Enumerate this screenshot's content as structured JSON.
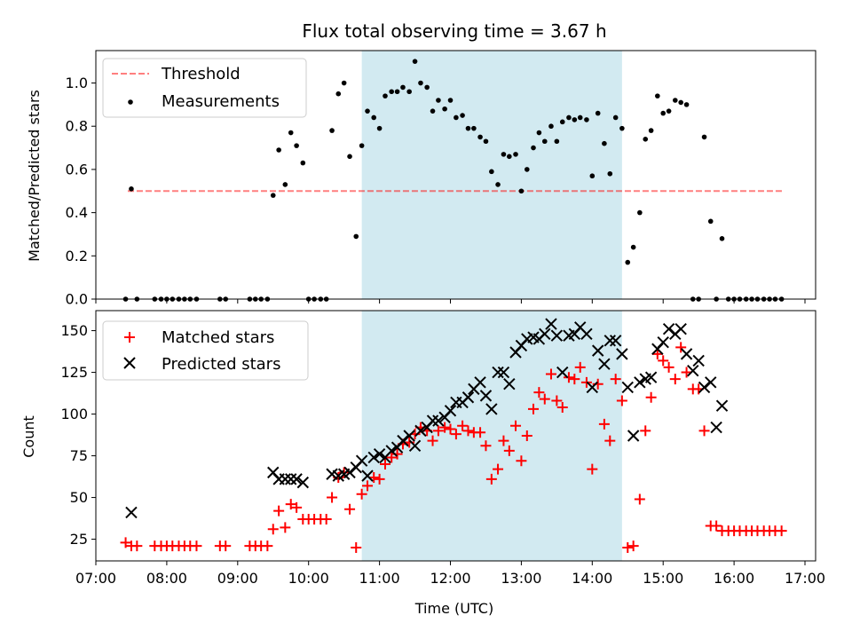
{
  "title": "Flux total observing time = 3.67 h",
  "colors": {
    "observing_span": "#add8e6",
    "threshold": "#ff0000",
    "measurements": "#000000",
    "matched": "#ff0000",
    "predicted": "#000000"
  },
  "chart_data": [
    {
      "type": "scatter",
      "panel": "top",
      "xlabel": "",
      "ylabel": "Matched/Predicted stars",
      "xlim": [
        7.0,
        17.15
      ],
      "ylim": [
        0.0,
        1.15
      ],
      "yticks": [
        0.0,
        0.2,
        0.4,
        0.6,
        0.8,
        1.0
      ],
      "ytick_labels": [
        "0.0",
        "0.2",
        "0.4",
        "0.6",
        "0.8",
        "1.0"
      ],
      "shaded_span": {
        "start": 10.75,
        "end": 14.42
      },
      "legend": {
        "position": "top-left",
        "entries": [
          {
            "label": "Threshold",
            "style": "dashed-line"
          },
          {
            "label": "Measurements",
            "style": "dot"
          }
        ]
      },
      "threshold": {
        "name": "Threshold",
        "value": 0.5,
        "x_range": [
          7.45,
          16.7
        ]
      },
      "series": [
        {
          "name": "Measurements",
          "x": [
            7.42,
            7.5,
            7.58,
            7.83,
            7.92,
            8.0,
            8.08,
            8.17,
            8.25,
            8.33,
            8.42,
            8.75,
            8.83,
            9.17,
            9.25,
            9.33,
            9.42,
            9.5,
            9.58,
            9.67,
            9.75,
            9.83,
            9.92,
            10.0,
            10.08,
            10.17,
            10.25,
            10.33,
            10.42,
            10.5,
            10.58,
            10.67,
            10.75,
            10.83,
            10.92,
            11.0,
            11.08,
            11.17,
            11.25,
            11.33,
            11.42,
            11.5,
            11.58,
            11.67,
            11.75,
            11.83,
            11.92,
            12.0,
            12.08,
            12.17,
            12.25,
            12.33,
            12.42,
            12.5,
            12.58,
            12.67,
            12.75,
            12.83,
            12.92,
            13.0,
            13.08,
            13.17,
            13.25,
            13.33,
            13.42,
            13.5,
            13.58,
            13.67,
            13.75,
            13.83,
            13.92,
            14.0,
            14.08,
            14.17,
            14.25,
            14.33,
            14.42,
            14.5,
            14.58,
            14.67,
            14.75,
            14.83,
            14.92,
            15.0,
            15.08,
            15.17,
            15.25,
            15.33,
            15.42,
            15.5,
            15.58,
            15.67,
            15.75,
            15.83,
            15.92,
            16.0,
            16.08,
            16.17,
            16.25,
            16.33,
            16.42,
            16.5,
            16.58,
            16.67
          ],
          "y": [
            0,
            0.51,
            0,
            0,
            0,
            0,
            0,
            0,
            0,
            0,
            0,
            0,
            0,
            0,
            0,
            0,
            0,
            0.48,
            0.69,
            0.53,
            0.77,
            0.71,
            0.63,
            0,
            0,
            0,
            0,
            0.78,
            0.95,
            1.0,
            0.66,
            0.29,
            0.71,
            0.87,
            0.84,
            0.79,
            0.94,
            0.96,
            0.96,
            0.98,
            0.96,
            1.1,
            1.0,
            0.98,
            0.87,
            0.92,
            0.88,
            0.92,
            0.84,
            0.85,
            0.79,
            0.79,
            0.75,
            0.73,
            0.59,
            0.53,
            0.67,
            0.66,
            0.67,
            0.5,
            0.6,
            0.7,
            0.77,
            0.73,
            0.8,
            0.73,
            0.82,
            0.84,
            0.83,
            0.84,
            0.83,
            0.57,
            0.86,
            0.72,
            0.58,
            0.84,
            0.79,
            0.17,
            0.24,
            0.4,
            0.74,
            0.78,
            0.94,
            0.86,
            0.87,
            0.92,
            0.91,
            0.9,
            0,
            0,
            0.75,
            0.36,
            0,
            0.28,
            0,
            0,
            0,
            0,
            0,
            0,
            0,
            0,
            0,
            0
          ]
        }
      ]
    },
    {
      "type": "scatter",
      "panel": "bottom",
      "xlabel": "Time (UTC)",
      "ylabel": "Count",
      "xlim": [
        7.0,
        17.15
      ],
      "ylim": [
        12,
        162
      ],
      "yticks": [
        25,
        50,
        75,
        100,
        125,
        150
      ],
      "ytick_labels": [
        "25",
        "50",
        "75",
        "100",
        "125",
        "150"
      ],
      "xticks": [
        7,
        8,
        9,
        10,
        11,
        12,
        13,
        14,
        15,
        16,
        17
      ],
      "xtick_labels": [
        "07:00",
        "08:00",
        "09:00",
        "10:00",
        "11:00",
        "12:00",
        "13:00",
        "14:00",
        "15:00",
        "16:00",
        "17:00"
      ],
      "shaded_span": {
        "start": 10.75,
        "end": 14.42
      },
      "legend": {
        "position": "top-left",
        "entries": [
          {
            "label": "Matched stars",
            "style": "plus"
          },
          {
            "label": "Predicted stars",
            "style": "cross"
          }
        ]
      },
      "series": [
        {
          "name": "Matched stars",
          "marker": "+",
          "x": [
            7.42,
            7.5,
            7.58,
            7.83,
            7.92,
            8.0,
            8.08,
            8.17,
            8.25,
            8.33,
            8.42,
            8.75,
            8.83,
            9.17,
            9.25,
            9.33,
            9.42,
            9.5,
            9.58,
            9.67,
            9.75,
            9.83,
            9.92,
            10.0,
            10.08,
            10.17,
            10.25,
            10.33,
            10.42,
            10.5,
            10.58,
            10.67,
            10.75,
            10.83,
            10.92,
            11.0,
            11.08,
            11.17,
            11.25,
            11.33,
            11.42,
            11.5,
            11.58,
            11.67,
            11.75,
            11.83,
            11.92,
            12.0,
            12.08,
            12.17,
            12.25,
            12.33,
            12.42,
            12.5,
            12.58,
            12.67,
            12.75,
            12.83,
            12.92,
            13.0,
            13.08,
            13.17,
            13.25,
            13.33,
            13.42,
            13.5,
            13.58,
            13.67,
            13.75,
            13.83,
            13.92,
            14.0,
            14.08,
            14.17,
            14.25,
            14.33,
            14.42,
            14.5,
            14.58,
            14.67,
            14.75,
            14.83,
            14.92,
            15.0,
            15.08,
            15.17,
            15.25,
            15.33,
            15.42,
            15.5,
            15.58,
            15.67,
            15.75,
            15.83,
            15.92,
            16.0,
            16.08,
            16.17,
            16.25,
            16.33,
            16.42,
            16.5,
            16.58,
            16.67
          ],
          "y": [
            23,
            21,
            21,
            21,
            21,
            21,
            21,
            21,
            21,
            21,
            21,
            21,
            21,
            21,
            21,
            21,
            21,
            31,
            42,
            32,
            46,
            44,
            37,
            37,
            37,
            37,
            37,
            50,
            62,
            65,
            43,
            20,
            52,
            57,
            62,
            61,
            70,
            74,
            76,
            82,
            83,
            88,
            92,
            90,
            84,
            90,
            92,
            91,
            88,
            93,
            90,
            89,
            89,
            81,
            61,
            67,
            84,
            78,
            93,
            72,
            87,
            103,
            113,
            109,
            124,
            108,
            104,
            122,
            121,
            128,
            119,
            67,
            118,
            94,
            84,
            121,
            108,
            20,
            21,
            49,
            90,
            110,
            136,
            132,
            128,
            121,
            140,
            125,
            115,
            115,
            90,
            33,
            33,
            30,
            30,
            30,
            30,
            30,
            30,
            30,
            30,
            30,
            30,
            30
          ]
        },
        {
          "name": "Predicted stars",
          "marker": "x",
          "x": [
            7.5,
            9.5,
            9.58,
            9.67,
            9.75,
            9.83,
            9.92,
            10.33,
            10.42,
            10.5,
            10.58,
            10.67,
            10.75,
            10.83,
            10.92,
            11.0,
            11.08,
            11.17,
            11.25,
            11.33,
            11.42,
            11.5,
            11.58,
            11.67,
            11.75,
            11.83,
            11.92,
            12.0,
            12.08,
            12.17,
            12.25,
            12.33,
            12.42,
            12.5,
            12.58,
            12.67,
            12.75,
            12.83,
            12.92,
            13.0,
            13.08,
            13.17,
            13.25,
            13.33,
            13.42,
            13.5,
            13.58,
            13.67,
            13.75,
            13.83,
            13.92,
            14.0,
            14.08,
            14.17,
            14.25,
            14.33,
            14.42,
            14.5,
            14.58,
            14.67,
            14.75,
            14.83,
            14.92,
            15.0,
            15.08,
            15.17,
            15.25,
            15.33,
            15.42,
            15.5,
            15.58,
            15.67,
            15.75,
            15.83
          ],
          "y": [
            41,
            65,
            61,
            61,
            61,
            61,
            59,
            64,
            63,
            64,
            65,
            68,
            72,
            63,
            74,
            76,
            74,
            78,
            80,
            84,
            87,
            81,
            90,
            92,
            96,
            96,
            98,
            102,
            107,
            107,
            110,
            115,
            119,
            111,
            103,
            125,
            125,
            118,
            137,
            141,
            145,
            146,
            145,
            148,
            154,
            147,
            125,
            147,
            148,
            152,
            148,
            116,
            138,
            130,
            144,
            144,
            136,
            116,
            87,
            119,
            121,
            122,
            139,
            143,
            151,
            148,
            151,
            136,
            126,
            132,
            116,
            119,
            92,
            105
          ]
        }
      ]
    }
  ]
}
